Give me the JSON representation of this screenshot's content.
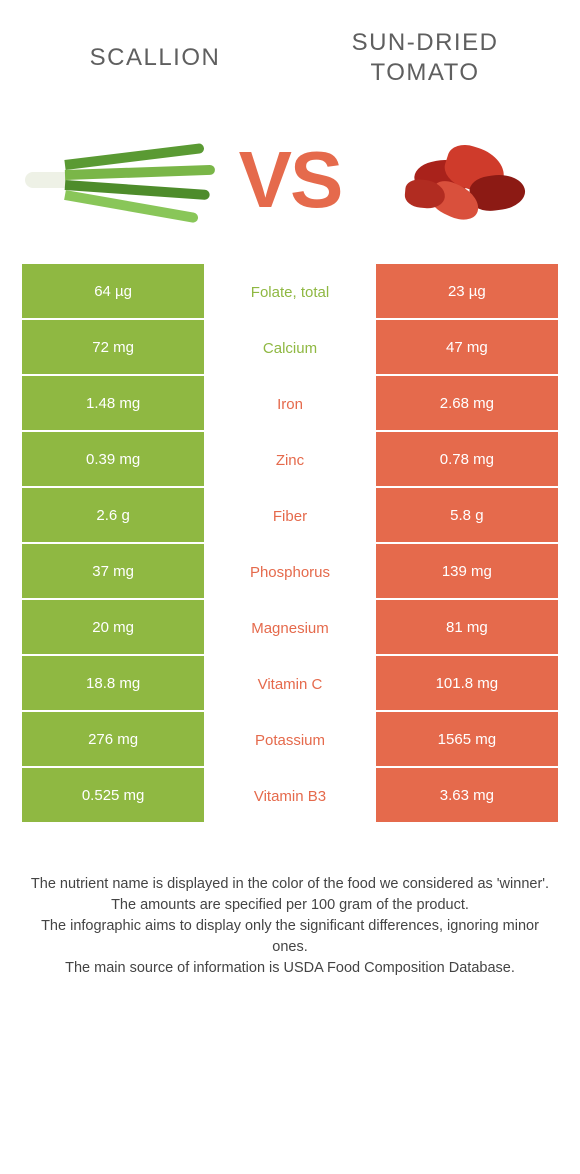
{
  "colors": {
    "left": "#8fb842",
    "right": "#e56a4c",
    "vs": "#e56a4c",
    "title": "#5f5f5f"
  },
  "header": {
    "left_title": "SCALLION",
    "right_title": "SUN-DRIED TOMATO",
    "vs": "VS"
  },
  "rows": [
    {
      "nutrient": "Folate, total",
      "left": "64 µg",
      "right": "23 µg",
      "winner": "left"
    },
    {
      "nutrient": "Calcium",
      "left": "72 mg",
      "right": "47 mg",
      "winner": "left"
    },
    {
      "nutrient": "Iron",
      "left": "1.48 mg",
      "right": "2.68 mg",
      "winner": "right"
    },
    {
      "nutrient": "Zinc",
      "left": "0.39 mg",
      "right": "0.78 mg",
      "winner": "right"
    },
    {
      "nutrient": "Fiber",
      "left": "2.6 g",
      "right": "5.8 g",
      "winner": "right"
    },
    {
      "nutrient": "Phosphorus",
      "left": "37 mg",
      "right": "139 mg",
      "winner": "right"
    },
    {
      "nutrient": "Magnesium",
      "left": "20 mg",
      "right": "81 mg",
      "winner": "right"
    },
    {
      "nutrient": "Vitamin C",
      "left": "18.8 mg",
      "right": "101.8 mg",
      "winner": "right"
    },
    {
      "nutrient": "Potassium",
      "left": "276 mg",
      "right": "1565 mg",
      "winner": "right"
    },
    {
      "nutrient": "Vitamin B3",
      "left": "0.525 mg",
      "right": "3.63 mg",
      "winner": "right"
    }
  ],
  "footer": {
    "line1": "The nutrient name is displayed in the color of the food we considered as 'winner'.",
    "line2": "The amounts are specified per 100 gram of the product.",
    "line3": "The infographic aims to display only the significant differences, ignoring minor ones.",
    "line4": "The main source of information is USDA Food Composition Database."
  }
}
